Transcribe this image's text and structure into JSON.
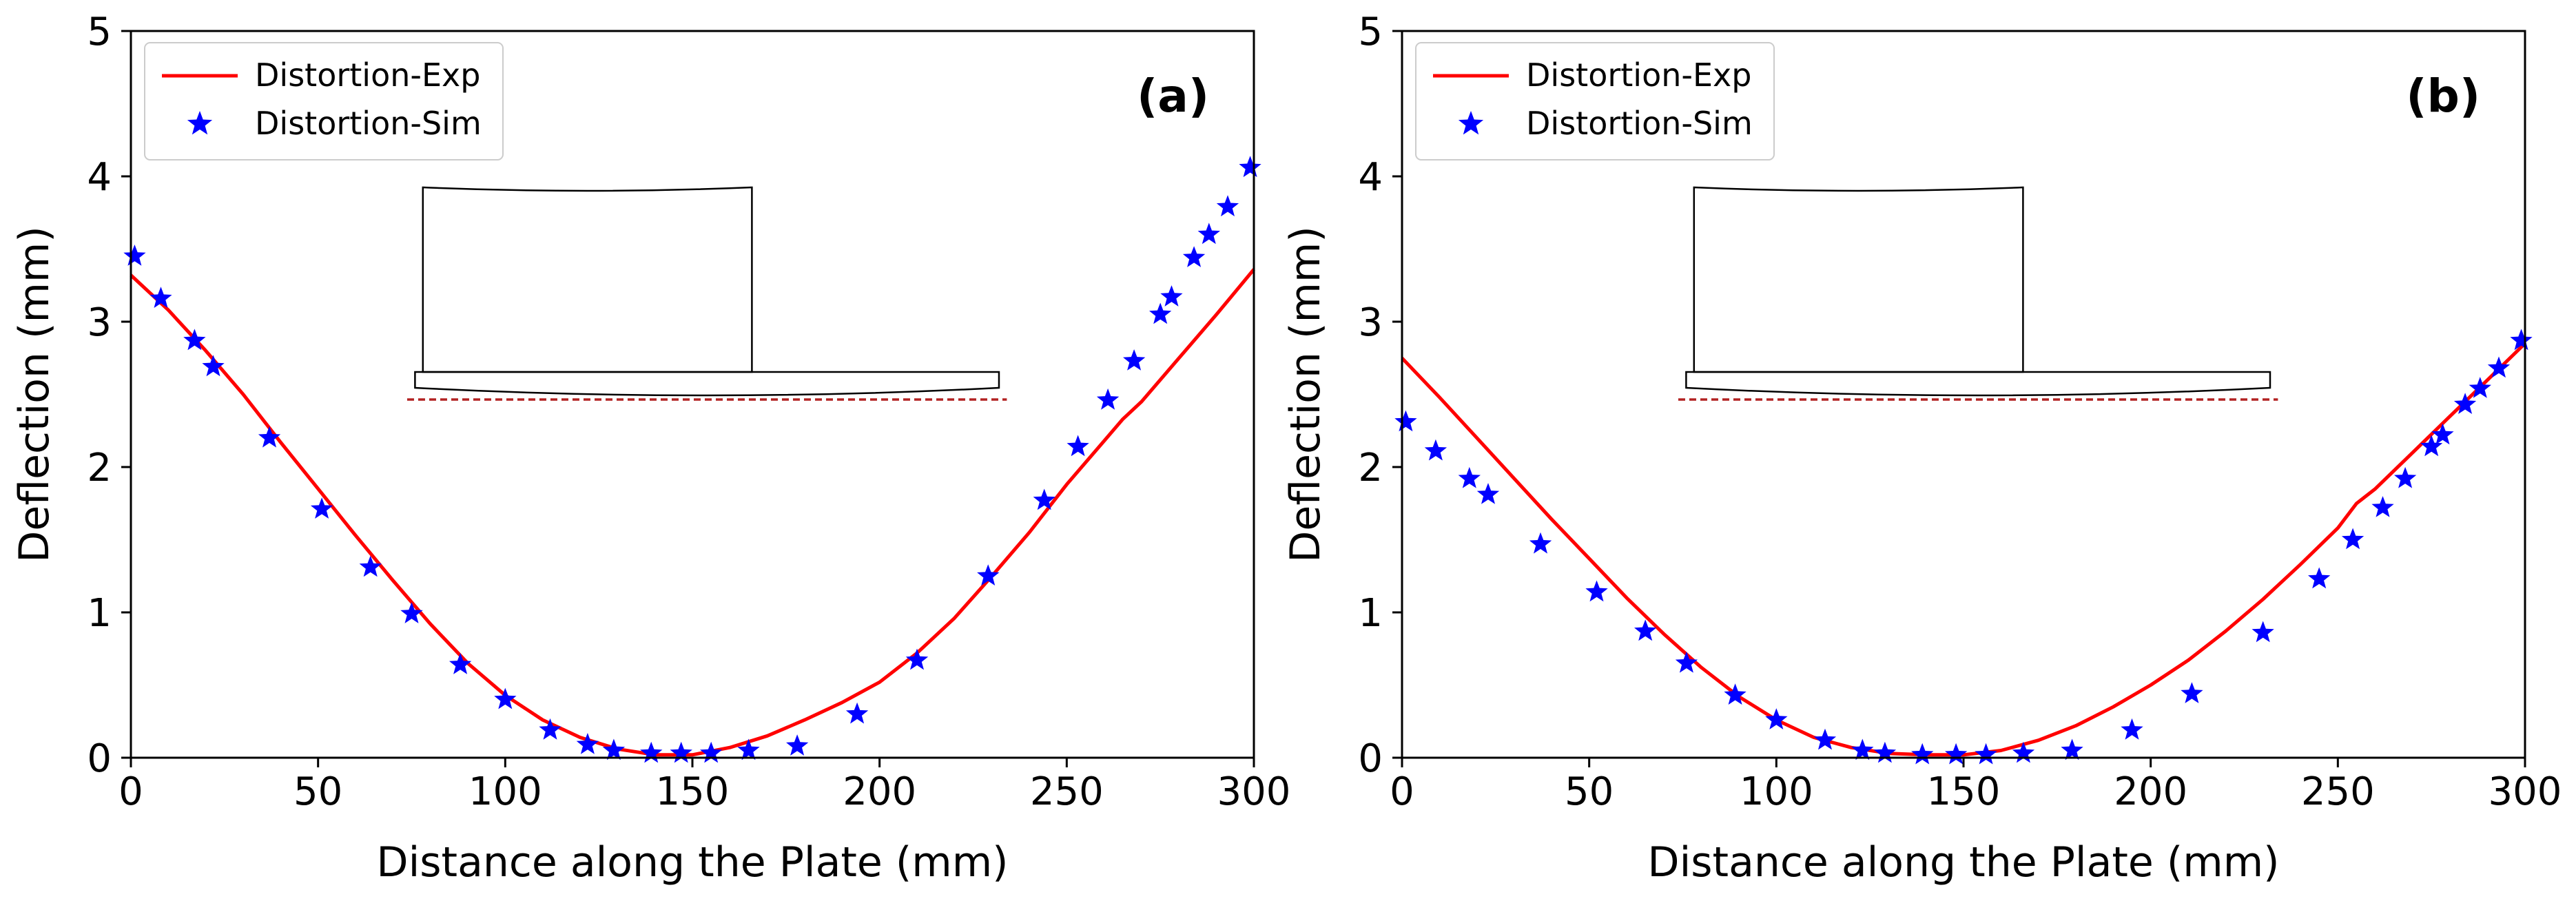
{
  "chart_data": [
    {
      "type": "line",
      "panel_label": "(a)",
      "title": "",
      "xlabel": "Distance along the Plate (mm)",
      "ylabel": "Deflection (mm)",
      "xlim": [
        0,
        300
      ],
      "ylim": [
        0,
        5
      ],
      "xticks": [
        0,
        50,
        100,
        150,
        200,
        250,
        300
      ],
      "yticks": [
        0,
        1,
        2,
        3,
        4,
        5
      ],
      "grid": false,
      "legend_position": "top-left",
      "series": [
        {
          "name": "Distortion-Exp",
          "style": "line",
          "color": "#ff0000",
          "points": [
            [
              0,
              3.32
            ],
            [
              10,
              3.08
            ],
            [
              20,
              2.8
            ],
            [
              30,
              2.5
            ],
            [
              40,
              2.17
            ],
            [
              50,
              1.85
            ],
            [
              60,
              1.53
            ],
            [
              70,
              1.22
            ],
            [
              80,
              0.92
            ],
            [
              90,
              0.65
            ],
            [
              100,
              0.43
            ],
            [
              110,
              0.26
            ],
            [
              120,
              0.14
            ],
            [
              130,
              0.06
            ],
            [
              140,
              0.02
            ],
            [
              150,
              0.02
            ],
            [
              160,
              0.07
            ],
            [
              170,
              0.15
            ],
            [
              180,
              0.26
            ],
            [
              190,
              0.38
            ],
            [
              200,
              0.52
            ],
            [
              210,
              0.72
            ],
            [
              220,
              0.96
            ],
            [
              230,
              1.25
            ],
            [
              240,
              1.55
            ],
            [
              250,
              1.88
            ],
            [
              260,
              2.18
            ],
            [
              265,
              2.33
            ],
            [
              270,
              2.45
            ],
            [
              280,
              2.75
            ],
            [
              290,
              3.05
            ],
            [
              300,
              3.36
            ]
          ]
        },
        {
          "name": "Distortion-Sim",
          "style": "marker",
          "marker": "star",
          "color": "#0000ff",
          "points": [
            [
              1,
              3.45
            ],
            [
              8,
              3.16
            ],
            [
              17,
              2.87
            ],
            [
              22,
              2.69
            ],
            [
              37,
              2.2
            ],
            [
              51,
              1.71
            ],
            [
              64,
              1.31
            ],
            [
              75,
              0.99
            ],
            [
              88,
              0.64
            ],
            [
              100,
              0.4
            ],
            [
              112,
              0.19
            ],
            [
              122,
              0.09
            ],
            [
              129,
              0.05
            ],
            [
              139,
              0.03
            ],
            [
              147,
              0.03
            ],
            [
              155,
              0.03
            ],
            [
              165,
              0.05
            ],
            [
              178,
              0.08
            ],
            [
              194,
              0.3
            ],
            [
              210,
              0.67
            ],
            [
              229,
              1.25
            ],
            [
              244,
              1.77
            ],
            [
              253,
              2.14
            ],
            [
              261,
              2.46
            ],
            [
              268,
              2.73
            ],
            [
              275,
              3.05
            ],
            [
              278,
              3.17
            ],
            [
              284,
              3.44
            ],
            [
              288,
              3.6
            ],
            [
              293,
              3.79
            ],
            [
              299,
              4.06
            ]
          ]
        }
      ]
    },
    {
      "type": "line",
      "panel_label": "(b)",
      "title": "",
      "xlabel": "Distance along the Plate (mm)",
      "ylabel": "Deflection (mm)",
      "xlim": [
        0,
        300
      ],
      "ylim": [
        0,
        5
      ],
      "xticks": [
        0,
        50,
        100,
        150,
        200,
        250,
        300
      ],
      "yticks": [
        0,
        1,
        2,
        3,
        4,
        5
      ],
      "grid": false,
      "legend_position": "top-left",
      "series": [
        {
          "name": "Distortion-Exp",
          "style": "line",
          "color": "#ff0000",
          "points": [
            [
              0,
              2.75
            ],
            [
              10,
              2.48
            ],
            [
              20,
              2.2
            ],
            [
              30,
              1.92
            ],
            [
              40,
              1.64
            ],
            [
              50,
              1.37
            ],
            [
              60,
              1.1
            ],
            [
              70,
              0.85
            ],
            [
              80,
              0.62
            ],
            [
              90,
              0.42
            ],
            [
              100,
              0.26
            ],
            [
              110,
              0.14
            ],
            [
              120,
              0.07
            ],
            [
              130,
              0.03
            ],
            [
              140,
              0.02
            ],
            [
              150,
              0.02
            ],
            [
              160,
              0.05
            ],
            [
              170,
              0.12
            ],
            [
              180,
              0.22
            ],
            [
              190,
              0.35
            ],
            [
              200,
              0.5
            ],
            [
              210,
              0.67
            ],
            [
              220,
              0.87
            ],
            [
              230,
              1.09
            ],
            [
              240,
              1.33
            ],
            [
              250,
              1.58
            ],
            [
              255,
              1.75
            ],
            [
              260,
              1.85
            ],
            [
              270,
              2.1
            ],
            [
              280,
              2.35
            ],
            [
              290,
              2.6
            ],
            [
              300,
              2.85
            ]
          ]
        },
        {
          "name": "Distortion-Sim",
          "style": "marker",
          "marker": "star",
          "color": "#0000ff",
          "points": [
            [
              1,
              2.31
            ],
            [
              9,
              2.11
            ],
            [
              18,
              1.92
            ],
            [
              23,
              1.81
            ],
            [
              37,
              1.47
            ],
            [
              52,
              1.14
            ],
            [
              65,
              0.87
            ],
            [
              76,
              0.65
            ],
            [
              89,
              0.43
            ],
            [
              100,
              0.26
            ],
            [
              113,
              0.12
            ],
            [
              123,
              0.05
            ],
            [
              129,
              0.03
            ],
            [
              139,
              0.02
            ],
            [
              148,
              0.02
            ],
            [
              156,
              0.02
            ],
            [
              166,
              0.03
            ],
            [
              179,
              0.05
            ],
            [
              195,
              0.19
            ],
            [
              211,
              0.44
            ],
            [
              230,
              0.86
            ],
            [
              245,
              1.23
            ],
            [
              254,
              1.5
            ],
            [
              262,
              1.72
            ],
            [
              268,
              1.92
            ],
            [
              275,
              2.14
            ],
            [
              278,
              2.22
            ],
            [
              284,
              2.43
            ],
            [
              288,
              2.54
            ],
            [
              293,
              2.68
            ],
            [
              299,
              2.87
            ]
          ]
        }
      ]
    }
  ]
}
